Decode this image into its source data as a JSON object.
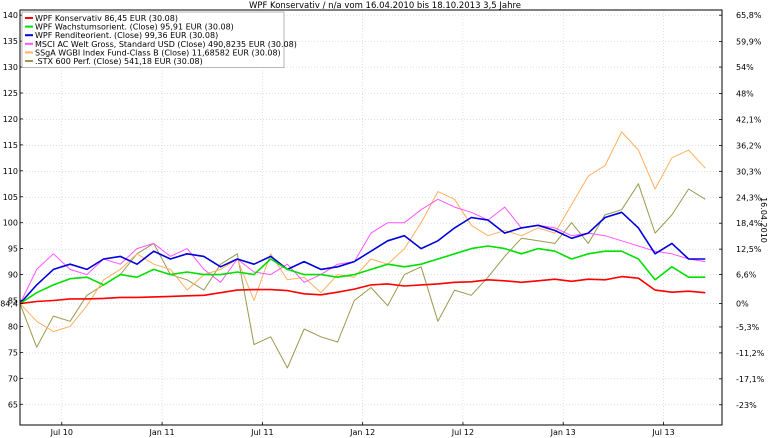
{
  "chart_data": {
    "type": "line",
    "title": "WPF Konservativ / n/a vom 16.04.2010 bis 18.10.2013 3,5 Jahre",
    "right_axis_title": "16.04.2010",
    "x_ticks": [
      "Jul 10",
      "Jan 11",
      "Jul 11",
      "Jan 12",
      "Jul 12",
      "Jan 13",
      "Jul 13"
    ],
    "x_tick_positions": [
      2.5,
      8.5,
      14.5,
      20.5,
      26.5,
      32.5,
      38.5
    ],
    "x_range": [
      0,
      42
    ],
    "ylim_left": [
      61,
      141
    ],
    "y_ticks_left": [
      65,
      70,
      75,
      80,
      84.4,
      85,
      90,
      95,
      100,
      105,
      110,
      115,
      120,
      125,
      130,
      135,
      140
    ],
    "y_tick_labels_left": [
      "65",
      "70",
      "75",
      "80",
      "84,4",
      "85",
      "90",
      "95",
      "100",
      "105",
      "110",
      "115",
      "120",
      "125",
      "130",
      "135",
      "140"
    ],
    "y_ticks_right": [
      {
        "value": 140,
        "label": "65,8%"
      },
      {
        "value": 134.95,
        "label": "59,9%"
      },
      {
        "value": 130.0,
        "label": "54%"
      },
      {
        "value": 124.9,
        "label": "48%"
      },
      {
        "value": 119.9,
        "label": "42,1%"
      },
      {
        "value": 114.9,
        "label": "36,2%"
      },
      {
        "value": 109.9,
        "label": "30,3%"
      },
      {
        "value": 104.9,
        "label": "24,3%"
      },
      {
        "value": 99.9,
        "label": "18,4%"
      },
      {
        "value": 94.9,
        "label": "12,5%"
      },
      {
        "value": 90.0,
        "label": "6,6%"
      },
      {
        "value": 84.4,
        "label": "0%"
      },
      {
        "value": 79.9,
        "label": "-5,3%"
      },
      {
        "value": 74.9,
        "label": "-11,2%"
      },
      {
        "value": 69.9,
        "label": "-17,1%"
      },
      {
        "value": 64.9,
        "label": "-23%"
      }
    ],
    "grid": true,
    "legend_position": "top-left",
    "series": [
      {
        "name": "WPF Konservativ 86,45 EUR (30.08)",
        "color": "#ff0000",
        "points": [
          [
            0,
            84.4
          ],
          [
            1,
            84.8
          ],
          [
            2,
            85.0
          ],
          [
            3,
            85.3
          ],
          [
            4,
            85.3
          ],
          [
            5,
            85.4
          ],
          [
            6,
            85.6
          ],
          [
            7,
            85.6
          ],
          [
            8,
            85.7
          ],
          [
            9,
            85.8
          ],
          [
            10,
            85.9
          ],
          [
            11,
            86.0
          ],
          [
            12,
            86.5
          ],
          [
            13,
            87.0
          ],
          [
            14,
            87.1
          ],
          [
            15,
            87.1
          ],
          [
            16,
            86.9
          ],
          [
            17,
            86.3
          ],
          [
            18,
            86.1
          ],
          [
            19,
            86.6
          ],
          [
            20,
            87.2
          ],
          [
            21,
            88.0
          ],
          [
            22,
            88.2
          ],
          [
            23,
            87.8
          ],
          [
            24,
            88.0
          ],
          [
            25,
            88.2
          ],
          [
            26,
            88.5
          ],
          [
            27,
            88.6
          ],
          [
            28,
            89.0
          ],
          [
            29,
            88.8
          ],
          [
            30,
            88.5
          ],
          [
            31,
            88.8
          ],
          [
            32,
            89.1
          ],
          [
            33,
            88.7
          ],
          [
            34,
            89.1
          ],
          [
            35,
            89.0
          ],
          [
            36,
            89.6
          ],
          [
            37,
            89.3
          ],
          [
            38,
            87.0
          ],
          [
            39,
            86.6
          ],
          [
            40,
            86.8
          ],
          [
            41,
            86.5
          ]
        ]
      },
      {
        "name": "WPF Wachstumsorient. (Close) 95,91 EUR (30.08)",
        "color": "#00e000",
        "points": [
          [
            0,
            84.4
          ],
          [
            1,
            86.5
          ],
          [
            2,
            88.0
          ],
          [
            3,
            89.2
          ],
          [
            4,
            89.5
          ],
          [
            5,
            88.0
          ],
          [
            6,
            90.0
          ],
          [
            7,
            89.5
          ],
          [
            8,
            91.0
          ],
          [
            9,
            90.0
          ],
          [
            10,
            90.5
          ],
          [
            11,
            90.0
          ],
          [
            12,
            90.0
          ],
          [
            13,
            90.5
          ],
          [
            14,
            90.0
          ],
          [
            15,
            93.0
          ],
          [
            16,
            91.0
          ],
          [
            17,
            90.0
          ],
          [
            18,
            90.0
          ],
          [
            19,
            89.5
          ],
          [
            20,
            90.0
          ],
          [
            21,
            91.0
          ],
          [
            22,
            92.0
          ],
          [
            23,
            91.5
          ],
          [
            24,
            92.0
          ],
          [
            25,
            93.0
          ],
          [
            26,
            94.0
          ],
          [
            27,
            95.0
          ],
          [
            28,
            95.5
          ],
          [
            29,
            95.0
          ],
          [
            30,
            94.0
          ],
          [
            31,
            95.0
          ],
          [
            32,
            94.5
          ],
          [
            33,
            93.0
          ],
          [
            34,
            94.0
          ],
          [
            35,
            94.5
          ],
          [
            36,
            94.5
          ],
          [
            37,
            93.0
          ],
          [
            38,
            89.0
          ],
          [
            39,
            91.5
          ],
          [
            40,
            89.5
          ],
          [
            41,
            89.5
          ]
        ]
      },
      {
        "name": "WPF Renditeorient. (Close) 99,36 EUR (30.08)",
        "color": "#0000dd",
        "points": [
          [
            0,
            84.4
          ],
          [
            1,
            88.0
          ],
          [
            2,
            91.0
          ],
          [
            3,
            92.0
          ],
          [
            4,
            91.0
          ],
          [
            5,
            93.0
          ],
          [
            6,
            93.5
          ],
          [
            7,
            92.0
          ],
          [
            8,
            94.5
          ],
          [
            9,
            93.0
          ],
          [
            10,
            94.0
          ],
          [
            11,
            93.5
          ],
          [
            12,
            91.5
          ],
          [
            13,
            93.0
          ],
          [
            14,
            92.0
          ],
          [
            15,
            93.5
          ],
          [
            16,
            91.0
          ],
          [
            17,
            92.5
          ],
          [
            18,
            91.0
          ],
          [
            19,
            91.5
          ],
          [
            20,
            92.5
          ],
          [
            21,
            94.5
          ],
          [
            22,
            96.5
          ],
          [
            23,
            97.5
          ],
          [
            24,
            95.0
          ],
          [
            25,
            96.5
          ],
          [
            26,
            99.0
          ],
          [
            27,
            101.0
          ],
          [
            28,
            100.5
          ],
          [
            29,
            98.0
          ],
          [
            30,
            99.0
          ],
          [
            31,
            99.5
          ],
          [
            32,
            98.5
          ],
          [
            33,
            97.0
          ],
          [
            34,
            98.0
          ],
          [
            35,
            101.0
          ],
          [
            36,
            102.0
          ],
          [
            37,
            99.0
          ],
          [
            38,
            94.0
          ],
          [
            39,
            96.0
          ],
          [
            40,
            93.0
          ],
          [
            41,
            93.0
          ]
        ]
      },
      {
        "name": "MSCI AC Welt Gross, Standard USD (Close) 490,8235 EUR (30.08)",
        "color": "#ff55ff",
        "points": [
          [
            0,
            84.4
          ],
          [
            1,
            91.0
          ],
          [
            2,
            94.0
          ],
          [
            3,
            91.0
          ],
          [
            4,
            90.0
          ],
          [
            5,
            93.0
          ],
          [
            6,
            92.0
          ],
          [
            7,
            95.0
          ],
          [
            8,
            96.0
          ],
          [
            9,
            93.5
          ],
          [
            10,
            95.0
          ],
          [
            11,
            91.0
          ],
          [
            12,
            88.5
          ],
          [
            13,
            93.0
          ],
          [
            14,
            90.5
          ],
          [
            15,
            90.0
          ],
          [
            16,
            92.0
          ],
          [
            17,
            88.5
          ],
          [
            18,
            90.0
          ],
          [
            19,
            92.0
          ],
          [
            20,
            92.5
          ],
          [
            21,
            98.0
          ],
          [
            22,
            100.0
          ],
          [
            23,
            100.0
          ],
          [
            24,
            102.5
          ],
          [
            25,
            104.5
          ],
          [
            26,
            103.0
          ],
          [
            27,
            102.0
          ],
          [
            28,
            100.5
          ],
          [
            29,
            103.0
          ],
          [
            30,
            99.0
          ],
          [
            31,
            99.5
          ],
          [
            32,
            99.0
          ],
          [
            33,
            97.5
          ],
          [
            34,
            98.0
          ],
          [
            35,
            97.5
          ],
          [
            36,
            96.5
          ],
          [
            37,
            95.5
          ],
          [
            38,
            94.5
          ],
          [
            39,
            94.0
          ],
          [
            40,
            93.0
          ],
          [
            41,
            92.5
          ]
        ]
      },
      {
        "name": "SSgA WGBI Index Fund-Class B (Close) 11,68582 EUR (30.08)",
        "color": "#ffb060",
        "points": [
          [
            0,
            84.4
          ],
          [
            1,
            81.0
          ],
          [
            2,
            79.0
          ],
          [
            3,
            80.0
          ],
          [
            4,
            84.0
          ],
          [
            5,
            89.0
          ],
          [
            6,
            91.0
          ],
          [
            7,
            94.0
          ],
          [
            8,
            92.0
          ],
          [
            9,
            91.0
          ],
          [
            10,
            87.0
          ],
          [
            11,
            90.0
          ],
          [
            12,
            91.0
          ],
          [
            13,
            93.0
          ],
          [
            14,
            85.0
          ],
          [
            15,
            94.0
          ],
          [
            16,
            89.0
          ],
          [
            17,
            89.5
          ],
          [
            18,
            86.5
          ],
          [
            19,
            90.0
          ],
          [
            20,
            89.5
          ],
          [
            21,
            93.0
          ],
          [
            22,
            92.0
          ],
          [
            23,
            95.0
          ],
          [
            24,
            100.0
          ],
          [
            25,
            106.0
          ],
          [
            26,
            104.5
          ],
          [
            27,
            99.5
          ],
          [
            28,
            97.5
          ],
          [
            29,
            98.5
          ],
          [
            30,
            97.5
          ],
          [
            31,
            99.0
          ],
          [
            32,
            98.0
          ],
          [
            33,
            103.5
          ],
          [
            34,
            109.0
          ],
          [
            35,
            111.0
          ],
          [
            36,
            117.5
          ],
          [
            37,
            114.0
          ],
          [
            38,
            106.5
          ],
          [
            39,
            112.5
          ],
          [
            40,
            114.0
          ],
          [
            41,
            110.5
          ]
        ]
      },
      {
        "name": ".STX 600 Perf. (Close) 541,18 EUR (30.08)",
        "color": "#999950",
        "points": [
          [
            0,
            84.4
          ],
          [
            1,
            76.0
          ],
          [
            2,
            82.0
          ],
          [
            3,
            81.0
          ],
          [
            4,
            86.0
          ],
          [
            5,
            88.0
          ],
          [
            6,
            90.0
          ],
          [
            7,
            94.0
          ],
          [
            8,
            96.0
          ],
          [
            9,
            90.0
          ],
          [
            10,
            89.0
          ],
          [
            11,
            87.0
          ],
          [
            12,
            92.0
          ],
          [
            13,
            94.0
          ],
          [
            14,
            76.5
          ],
          [
            15,
            78.0
          ],
          [
            16,
            72.0
          ],
          [
            17,
            79.5
          ],
          [
            18,
            78.0
          ],
          [
            19,
            77.0
          ],
          [
            20,
            85.0
          ],
          [
            21,
            87.5
          ],
          [
            22,
            84.0
          ],
          [
            23,
            90.0
          ],
          [
            24,
            91.5
          ],
          [
            25,
            81.0
          ],
          [
            26,
            87.0
          ],
          [
            27,
            86.0
          ],
          [
            28,
            89.5
          ],
          [
            29,
            93.5
          ],
          [
            30,
            97.0
          ],
          [
            31,
            96.5
          ],
          [
            32,
            96.0
          ],
          [
            33,
            100.0
          ],
          [
            34,
            96.0
          ],
          [
            35,
            101.5
          ],
          [
            36,
            102.5
          ],
          [
            37,
            107.5
          ],
          [
            38,
            98.0
          ],
          [
            39,
            101.5
          ],
          [
            40,
            106.5
          ],
          [
            41,
            104.5
          ]
        ]
      }
    ]
  }
}
